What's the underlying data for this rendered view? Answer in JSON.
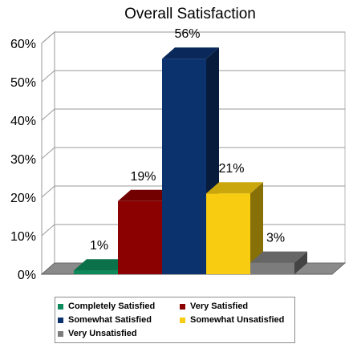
{
  "chart_data": {
    "type": "bar",
    "title": "Overall Satisfaction",
    "categories": [
      "Completely Satisfied",
      "Very Satisfied",
      "Somewhat Satisfied",
      "Somewhat Unsatisfied",
      "Very Unsatisfied"
    ],
    "values": [
      1,
      19,
      56,
      21,
      3
    ],
    "value_labels": [
      "1%",
      "19%",
      "56%",
      "21%",
      "3%"
    ],
    "ylim": [
      0,
      60
    ],
    "yticks": [
      "0%",
      "10%",
      "20%",
      "30%",
      "40%",
      "50%",
      "60%"
    ],
    "xlabel": "",
    "ylabel": "",
    "grid": true,
    "legend_position": "bottom",
    "colors": [
      "#0d8a5c",
      "#8b0000",
      "#0c326e",
      "#f8cc11",
      "#7c7c7c"
    ],
    "style": "3d-columns"
  },
  "legend": {
    "items": [
      {
        "label": "Completely Satisfied",
        "color": "#0d8a5c"
      },
      {
        "label": "Very Satisfied",
        "color": "#8b0000"
      },
      {
        "label": "Somewhat Satisfied",
        "color": "#0c326e"
      },
      {
        "label": "Somewhat Unsatisfied",
        "color": "#f8cc11"
      },
      {
        "label": "Very Unsatisfied",
        "color": "#7c7c7c"
      }
    ]
  }
}
